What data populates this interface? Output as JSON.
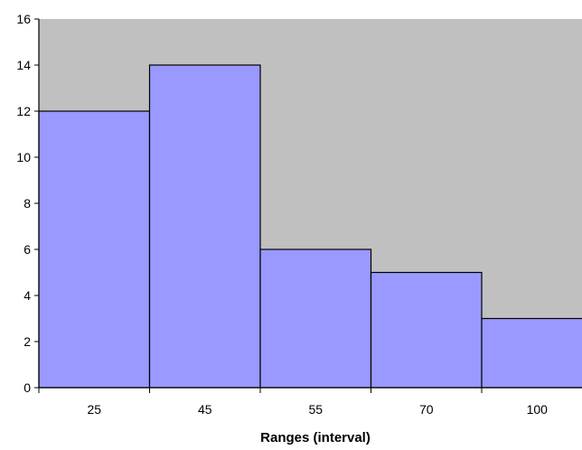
{
  "chart_data": {
    "type": "bar",
    "title": "",
    "xlabel": "Ranges (interval)",
    "ylabel": "",
    "categories": [
      "25",
      "45",
      "55",
      "70",
      "100"
    ],
    "values": [
      12,
      14,
      6,
      5,
      3
    ],
    "ylim": [
      0,
      16
    ],
    "yticks": [
      0,
      2,
      4,
      6,
      8,
      10,
      12,
      14,
      16
    ],
    "grid": false,
    "legend": "none",
    "colors": {
      "plot_background": "#c0c0c0",
      "bar_fill": "#9999ff",
      "bar_stroke": "#000000",
      "axis": "#000000"
    }
  }
}
